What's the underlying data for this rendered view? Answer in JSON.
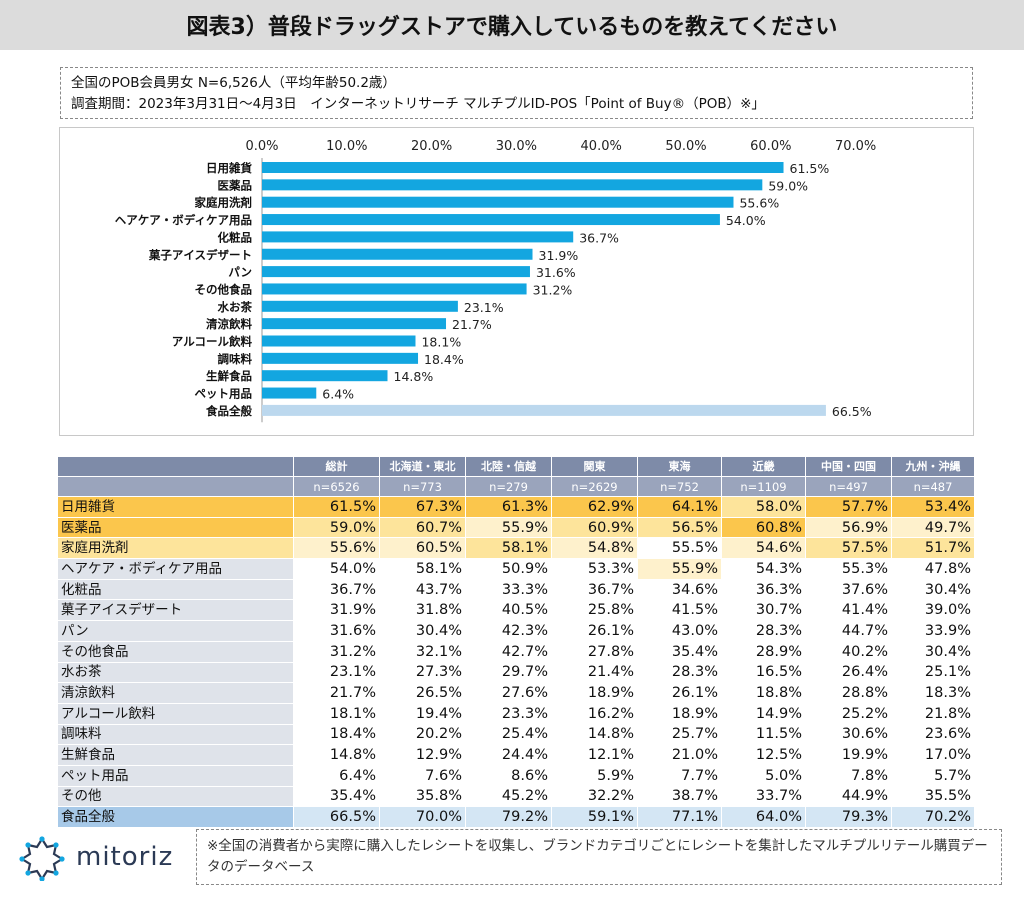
{
  "title": "図表3）普段ドラッグストアで購入しているものを教えてください",
  "note": {
    "line1": "全国のPOB会員男女 N=6,526人（平均年齢50.2歳）",
    "line2": "調査期間：2023年3月31日～4月3日　インターネットリサーチ マルチプルID-POS「Point of Buy®（POB）※」"
  },
  "chart_data": {
    "type": "bar",
    "orientation": "horizontal",
    "x_ticks": [
      "0.0%",
      "10.0%",
      "20.0%",
      "30.0%",
      "40.0%",
      "50.0%",
      "60.0%",
      "70.0%"
    ],
    "xlim": [
      0,
      70
    ],
    "categories": [
      "日用雑貨",
      "医薬品",
      "家庭用洗剤",
      "ヘアケア・ボディケア用品",
      "化粧品",
      "菓子アイスデザート",
      "パン",
      "その他食品",
      "水お茶",
      "清涼飲料",
      "アルコール飲料",
      "調味料",
      "生鮮食品",
      "ペット用品",
      "食品全般"
    ],
    "values": [
      61.5,
      59.0,
      55.6,
      54.0,
      36.7,
      31.9,
      31.6,
      31.2,
      23.1,
      21.7,
      18.1,
      18.4,
      14.8,
      6.4,
      66.5
    ],
    "value_labels": [
      "61.5%",
      "59.0%",
      "55.6%",
      "54.0%",
      "36.7%",
      "31.9%",
      "31.6%",
      "31.2%",
      "23.1%",
      "21.7%",
      "18.1%",
      "18.4%",
      "14.8%",
      "6.4%",
      "66.5%"
    ],
    "bar_color": "#13a6e0",
    "highlight_color": "#bcd8ee",
    "highlight_index": 14
  },
  "table": {
    "headers": [
      "総計",
      "北海道・東北",
      "北陸・信越",
      "関東",
      "東海",
      "近畿",
      "中国・四国",
      "九州・沖縄"
    ],
    "n_row": [
      "n=6526",
      "n=773",
      "n=279",
      "n=2629",
      "n=752",
      "n=1109",
      "n=497",
      "n=487"
    ],
    "rows": [
      {
        "label": "日用雑貨",
        "values": [
          "61.5%",
          "67.3%",
          "61.3%",
          "62.9%",
          "64.1%",
          "58.0%",
          "57.7%",
          "53.4%"
        ]
      },
      {
        "label": "医薬品",
        "values": [
          "59.0%",
          "60.7%",
          "55.9%",
          "60.9%",
          "56.5%",
          "60.8%",
          "56.9%",
          "49.7%"
        ]
      },
      {
        "label": "家庭用洗剤",
        "values": [
          "55.6%",
          "60.5%",
          "58.1%",
          "54.8%",
          "55.5%",
          "54.6%",
          "57.5%",
          "51.7%"
        ]
      },
      {
        "label": "ヘアケア・ボディケア用品",
        "values": [
          "54.0%",
          "58.1%",
          "50.9%",
          "53.3%",
          "55.9%",
          "54.3%",
          "55.3%",
          "47.8%"
        ]
      },
      {
        "label": "化粧品",
        "values": [
          "36.7%",
          "43.7%",
          "33.3%",
          "36.7%",
          "34.6%",
          "36.3%",
          "37.6%",
          "30.4%"
        ]
      },
      {
        "label": "菓子アイスデザート",
        "values": [
          "31.9%",
          "31.8%",
          "40.5%",
          "25.8%",
          "41.5%",
          "30.7%",
          "41.4%",
          "39.0%"
        ]
      },
      {
        "label": "パン",
        "values": [
          "31.6%",
          "30.4%",
          "42.3%",
          "26.1%",
          "43.0%",
          "28.3%",
          "44.7%",
          "33.9%"
        ]
      },
      {
        "label": "その他食品",
        "values": [
          "31.2%",
          "32.1%",
          "42.7%",
          "27.8%",
          "35.4%",
          "28.9%",
          "40.2%",
          "30.4%"
        ]
      },
      {
        "label": "水お茶",
        "values": [
          "23.1%",
          "27.3%",
          "29.7%",
          "21.4%",
          "28.3%",
          "16.5%",
          "26.4%",
          "25.1%"
        ]
      },
      {
        "label": "清涼飲料",
        "values": [
          "21.7%",
          "26.5%",
          "27.6%",
          "18.9%",
          "26.1%",
          "18.8%",
          "28.8%",
          "18.3%"
        ]
      },
      {
        "label": "アルコール飲料",
        "values": [
          "18.1%",
          "19.4%",
          "23.3%",
          "16.2%",
          "18.9%",
          "14.9%",
          "25.2%",
          "21.8%"
        ]
      },
      {
        "label": "調味料",
        "values": [
          "18.4%",
          "20.2%",
          "25.4%",
          "14.8%",
          "25.7%",
          "11.5%",
          "30.6%",
          "23.6%"
        ]
      },
      {
        "label": "生鮮食品",
        "values": [
          "14.8%",
          "12.9%",
          "24.4%",
          "12.1%",
          "21.0%",
          "12.5%",
          "19.9%",
          "17.0%"
        ]
      },
      {
        "label": "ペット用品",
        "values": [
          "6.4%",
          "7.6%",
          "8.6%",
          "5.9%",
          "7.7%",
          "5.0%",
          "7.8%",
          "5.7%"
        ]
      },
      {
        "label": "その他",
        "values": [
          "35.4%",
          "35.8%",
          "45.2%",
          "32.2%",
          "38.7%",
          "33.7%",
          "44.9%",
          "35.5%"
        ]
      },
      {
        "label": "食品全般",
        "values": [
          "66.5%",
          "70.0%",
          "79.2%",
          "59.1%",
          "77.1%",
          "64.0%",
          "79.3%",
          "70.2%"
        ]
      }
    ],
    "colors": {
      "rank1": "#fbc64c",
      "rank2": "#fde49b",
      "rank3": "#fef1cc",
      "label_highlight": "#fbc64c",
      "label_plain": "#dfe3ea",
      "food_row": "#d4e6f4",
      "food_label": "#a7c9e8",
      "cell_plain": "#ffffff"
    }
  },
  "footer": {
    "brand": "mitoriz",
    "note": "※全国の消費者から実際に購入したレシートを収集し、ブランドカテゴリごとにレシートを集計したマルチプルリテール購買データのデータベース"
  }
}
